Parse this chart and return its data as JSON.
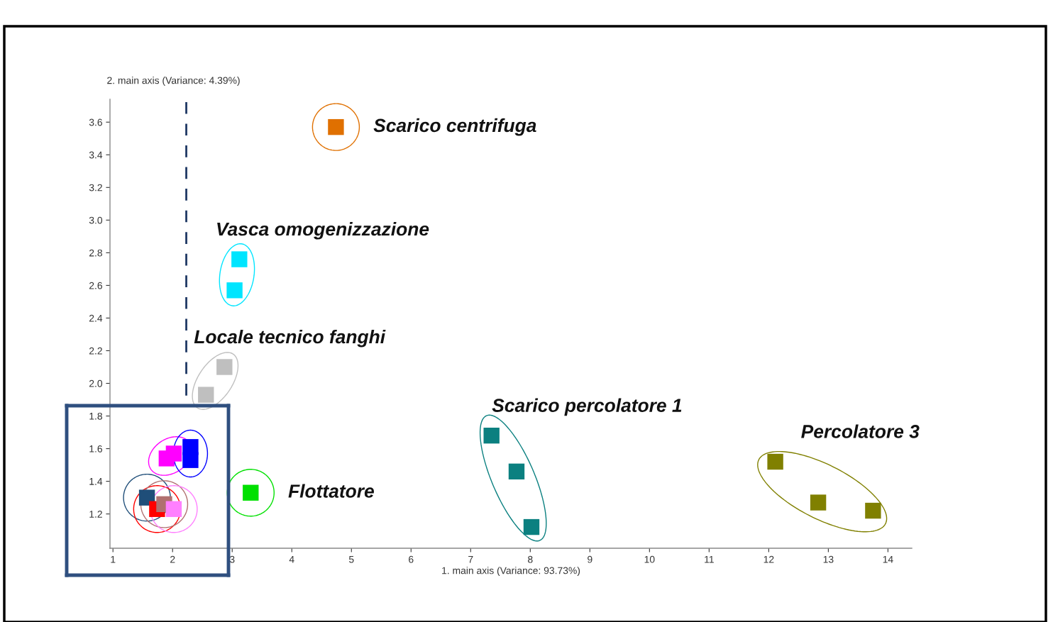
{
  "chart_data": {
    "type": "scatter",
    "xlabel": "1. main axis (Variance: 93.73%)",
    "ylabel": "2. main axis (Variance: 4.39%)",
    "xlim": [
      0.95,
      14.4
    ],
    "ylim": [
      0.99,
      3.74
    ],
    "xticks": [
      1,
      2,
      3,
      4,
      5,
      6,
      7,
      8,
      9,
      10,
      11,
      12,
      13,
      14
    ],
    "yticks": [
      1.2,
      1.4,
      1.6,
      1.8,
      {
        "value": 2,
        "label": "2.0"
      },
      2.2,
      2.4,
      2.6,
      2.8,
      {
        "value": 3,
        "label": "3.0"
      },
      3.2,
      3.4,
      3.6
    ],
    "marker": "square",
    "grid": false,
    "legend": false,
    "ref_lines": [
      {
        "axis": "x",
        "value": 2.23,
        "color": "#1f3864",
        "line_style": "dashed"
      }
    ],
    "series": [
      {
        "name": "Scarico centrifuga",
        "color": "#e07000",
        "x": [
          4.74
        ],
        "values": [
          3.57
        ]
      },
      {
        "name": "Vasca omogenizzazione",
        "color": "#00e5ff",
        "x": [
          3.12,
          3.04
        ],
        "values": [
          2.76,
          2.57
        ]
      },
      {
        "name": "Locale tecnico fanghi",
        "color": "#bfbfbf",
        "x": [
          2.87,
          2.56
        ],
        "values": [
          2.1,
          1.93
        ]
      },
      {
        "name": "Flottatore",
        "color": "#00e000",
        "x": [
          3.31
        ],
        "values": [
          1.33
        ]
      },
      {
        "name": "Scarico percolatore 1",
        "color": "#0b8080",
        "x": [
          7.35,
          7.77,
          8.02
        ],
        "values": [
          1.68,
          1.46,
          1.12
        ]
      },
      {
        "name": "Percolatore 3",
        "color": "#808000",
        "x": [
          12.11,
          12.83,
          13.75
        ],
        "values": [
          1.52,
          1.27,
          1.22
        ]
      },
      {
        "color": "#ff00ff",
        "x": [
          1.9,
          2.02
        ],
        "values": [
          1.54,
          1.57
        ]
      },
      {
        "color": "#0000ff",
        "x": [
          2.3,
          2.3
        ],
        "values": [
          1.61,
          1.53
        ]
      },
      {
        "color": "#1f4e79",
        "x": [
          1.57
        ],
        "values": [
          1.3
        ]
      },
      {
        "color": "#ff0000",
        "x": [
          1.74
        ],
        "values": [
          1.23
        ]
      },
      {
        "color": "#b07070",
        "x": [
          1.86
        ],
        "values": [
          1.26
        ]
      },
      {
        "color": "#ff80ff",
        "x": [
          2.02
        ],
        "values": [
          1.23
        ]
      }
    ]
  }
}
